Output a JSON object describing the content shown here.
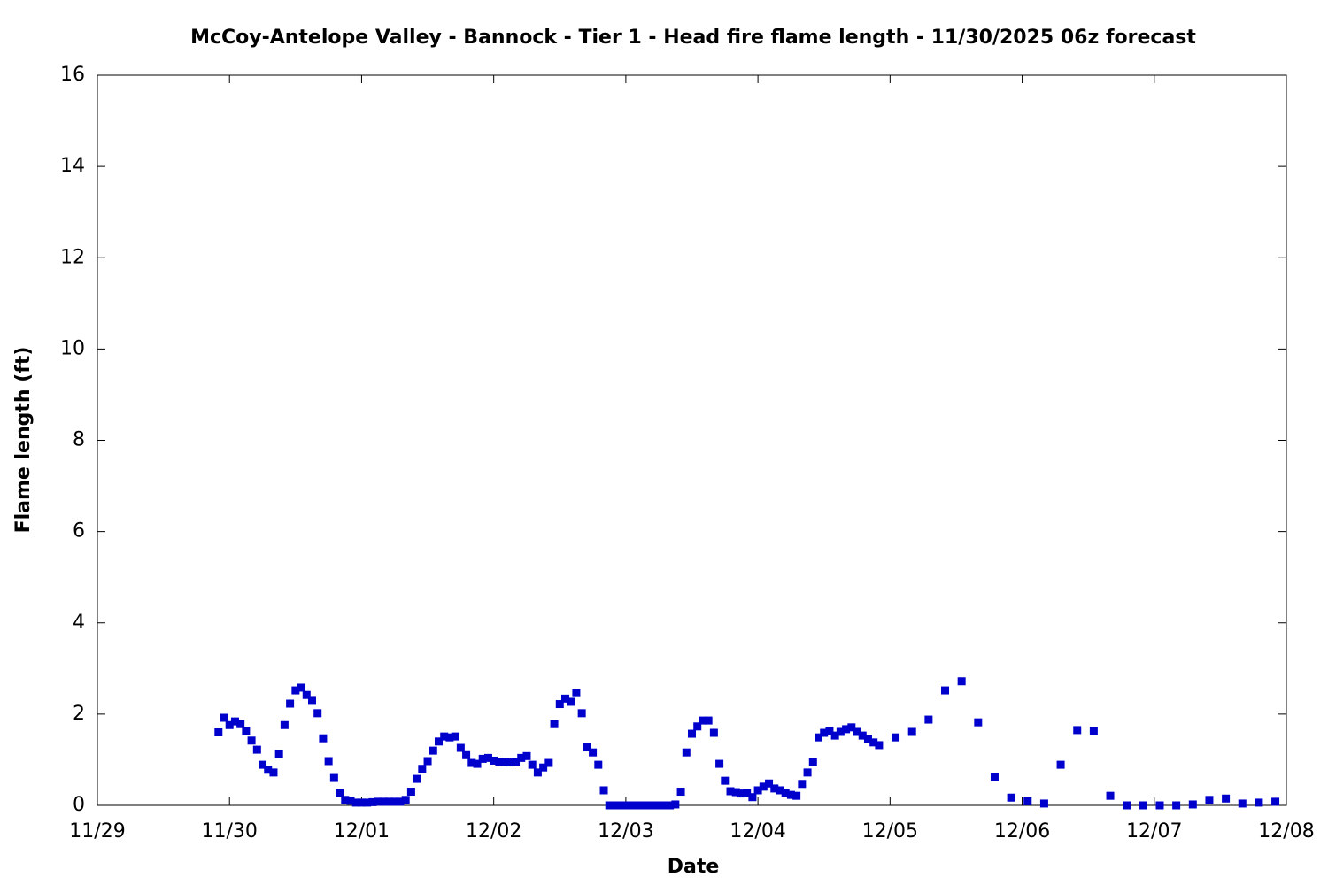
{
  "chart_data": {
    "type": "scatter",
    "title": "McCoy-Antelope Valley - Bannock - Tier 1 - Head fire flame length - 11/30/2025 06z forecast",
    "x_label": "Date",
    "y_label": "Flame length (ft)",
    "color": "#0000cc",
    "xlim": [
      0,
      216
    ],
    "xticks": [
      {
        "value": 0,
        "label": "11/29"
      },
      {
        "value": 24,
        "label": "11/30"
      },
      {
        "value": 48,
        "label": "12/01"
      },
      {
        "value": 72,
        "label": "12/02"
      },
      {
        "value": 96,
        "label": "12/03"
      },
      {
        "value": 120,
        "label": "12/04"
      },
      {
        "value": 144,
        "label": "12/05"
      },
      {
        "value": 168,
        "label": "12/06"
      },
      {
        "value": 192,
        "label": "12/07"
      },
      {
        "value": 216,
        "label": "12/08"
      }
    ],
    "ylim": [
      0,
      16
    ],
    "yticks": [
      0,
      2,
      4,
      6,
      8,
      10,
      12,
      14,
      16
    ],
    "x": [
      22,
      23,
      24,
      25,
      26,
      27,
      28,
      29,
      30,
      31,
      32,
      33,
      34,
      35,
      36,
      37,
      38,
      39,
      40,
      41,
      42,
      43,
      44,
      45,
      46,
      47,
      48,
      49,
      50,
      51,
      52,
      53,
      54,
      55,
      56,
      57,
      58,
      59,
      60,
      61,
      62,
      63,
      64,
      65,
      66,
      67,
      68,
      69,
      70,
      71,
      72,
      73,
      74,
      75,
      76,
      77,
      78,
      79,
      80,
      81,
      82,
      83,
      84,
      85,
      86,
      87,
      88,
      89,
      90,
      91,
      92,
      93,
      94,
      95,
      96,
      97,
      98,
      99,
      100,
      101,
      102,
      103,
      104,
      105,
      106,
      107,
      108,
      109,
      110,
      111,
      112,
      113,
      114,
      115,
      116,
      117,
      118,
      119,
      120,
      121,
      122,
      123,
      124,
      125,
      126,
      127,
      128,
      129,
      130,
      131,
      132,
      133,
      134,
      135,
      136,
      137,
      138,
      139,
      140,
      141,
      142,
      145,
      148,
      151,
      154,
      157,
      160,
      163,
      166,
      169,
      172,
      175,
      178,
      181,
      184,
      187,
      190,
      193,
      196,
      199,
      202,
      205,
      208,
      211,
      214
    ],
    "values": [
      1.6,
      1.92,
      1.76,
      1.84,
      1.78,
      1.63,
      1.42,
      1.22,
      0.89,
      0.78,
      0.72,
      1.12,
      1.76,
      2.23,
      2.52,
      2.58,
      2.42,
      2.29,
      2.02,
      1.47,
      0.97,
      0.6,
      0.27,
      0.12,
      0.1,
      0.06,
      0.06,
      0.06,
      0.07,
      0.08,
      0.08,
      0.08,
      0.08,
      0.08,
      0.12,
      0.3,
      0.58,
      0.8,
      0.97,
      1.2,
      1.4,
      1.51,
      1.49,
      1.51,
      1.26,
      1.1,
      0.93,
      0.91,
      1.02,
      1.04,
      0.98,
      0.96,
      0.95,
      0.94,
      0.96,
      1.04,
      1.08,
      0.89,
      0.72,
      0.83,
      0.93,
      1.78,
      2.22,
      2.34,
      2.27,
      2.46,
      2.02,
      1.27,
      1.16,
      0.89,
      0.33,
      0,
      0,
      0,
      0,
      0,
      0,
      0,
      0,
      0,
      0,
      0,
      0,
      0.02,
      0.3,
      1.16,
      1.57,
      1.73,
      1.86,
      1.86,
      1.59,
      0.91,
      0.54,
      0.31,
      0.29,
      0.26,
      0.27,
      0.18,
      0.33,
      0.41,
      0.48,
      0.37,
      0.33,
      0.28,
      0.23,
      0.21,
      0.47,
      0.72,
      0.95,
      1.49,
      1.59,
      1.63,
      1.53,
      1.61,
      1.67,
      1.71,
      1.61,
      1.53,
      1.45,
      1.38,
      1.32,
      1.49,
      1.61,
      1.88,
      2.52,
      2.72,
      1.82,
      0.62,
      0.17,
      0.09,
      0.04,
      0.89,
      1.65,
      1.63,
      0.21,
      0,
      0,
      0,
      0,
      0.02,
      0.12,
      0.15,
      0.04,
      0.06,
      0.08
    ]
  }
}
